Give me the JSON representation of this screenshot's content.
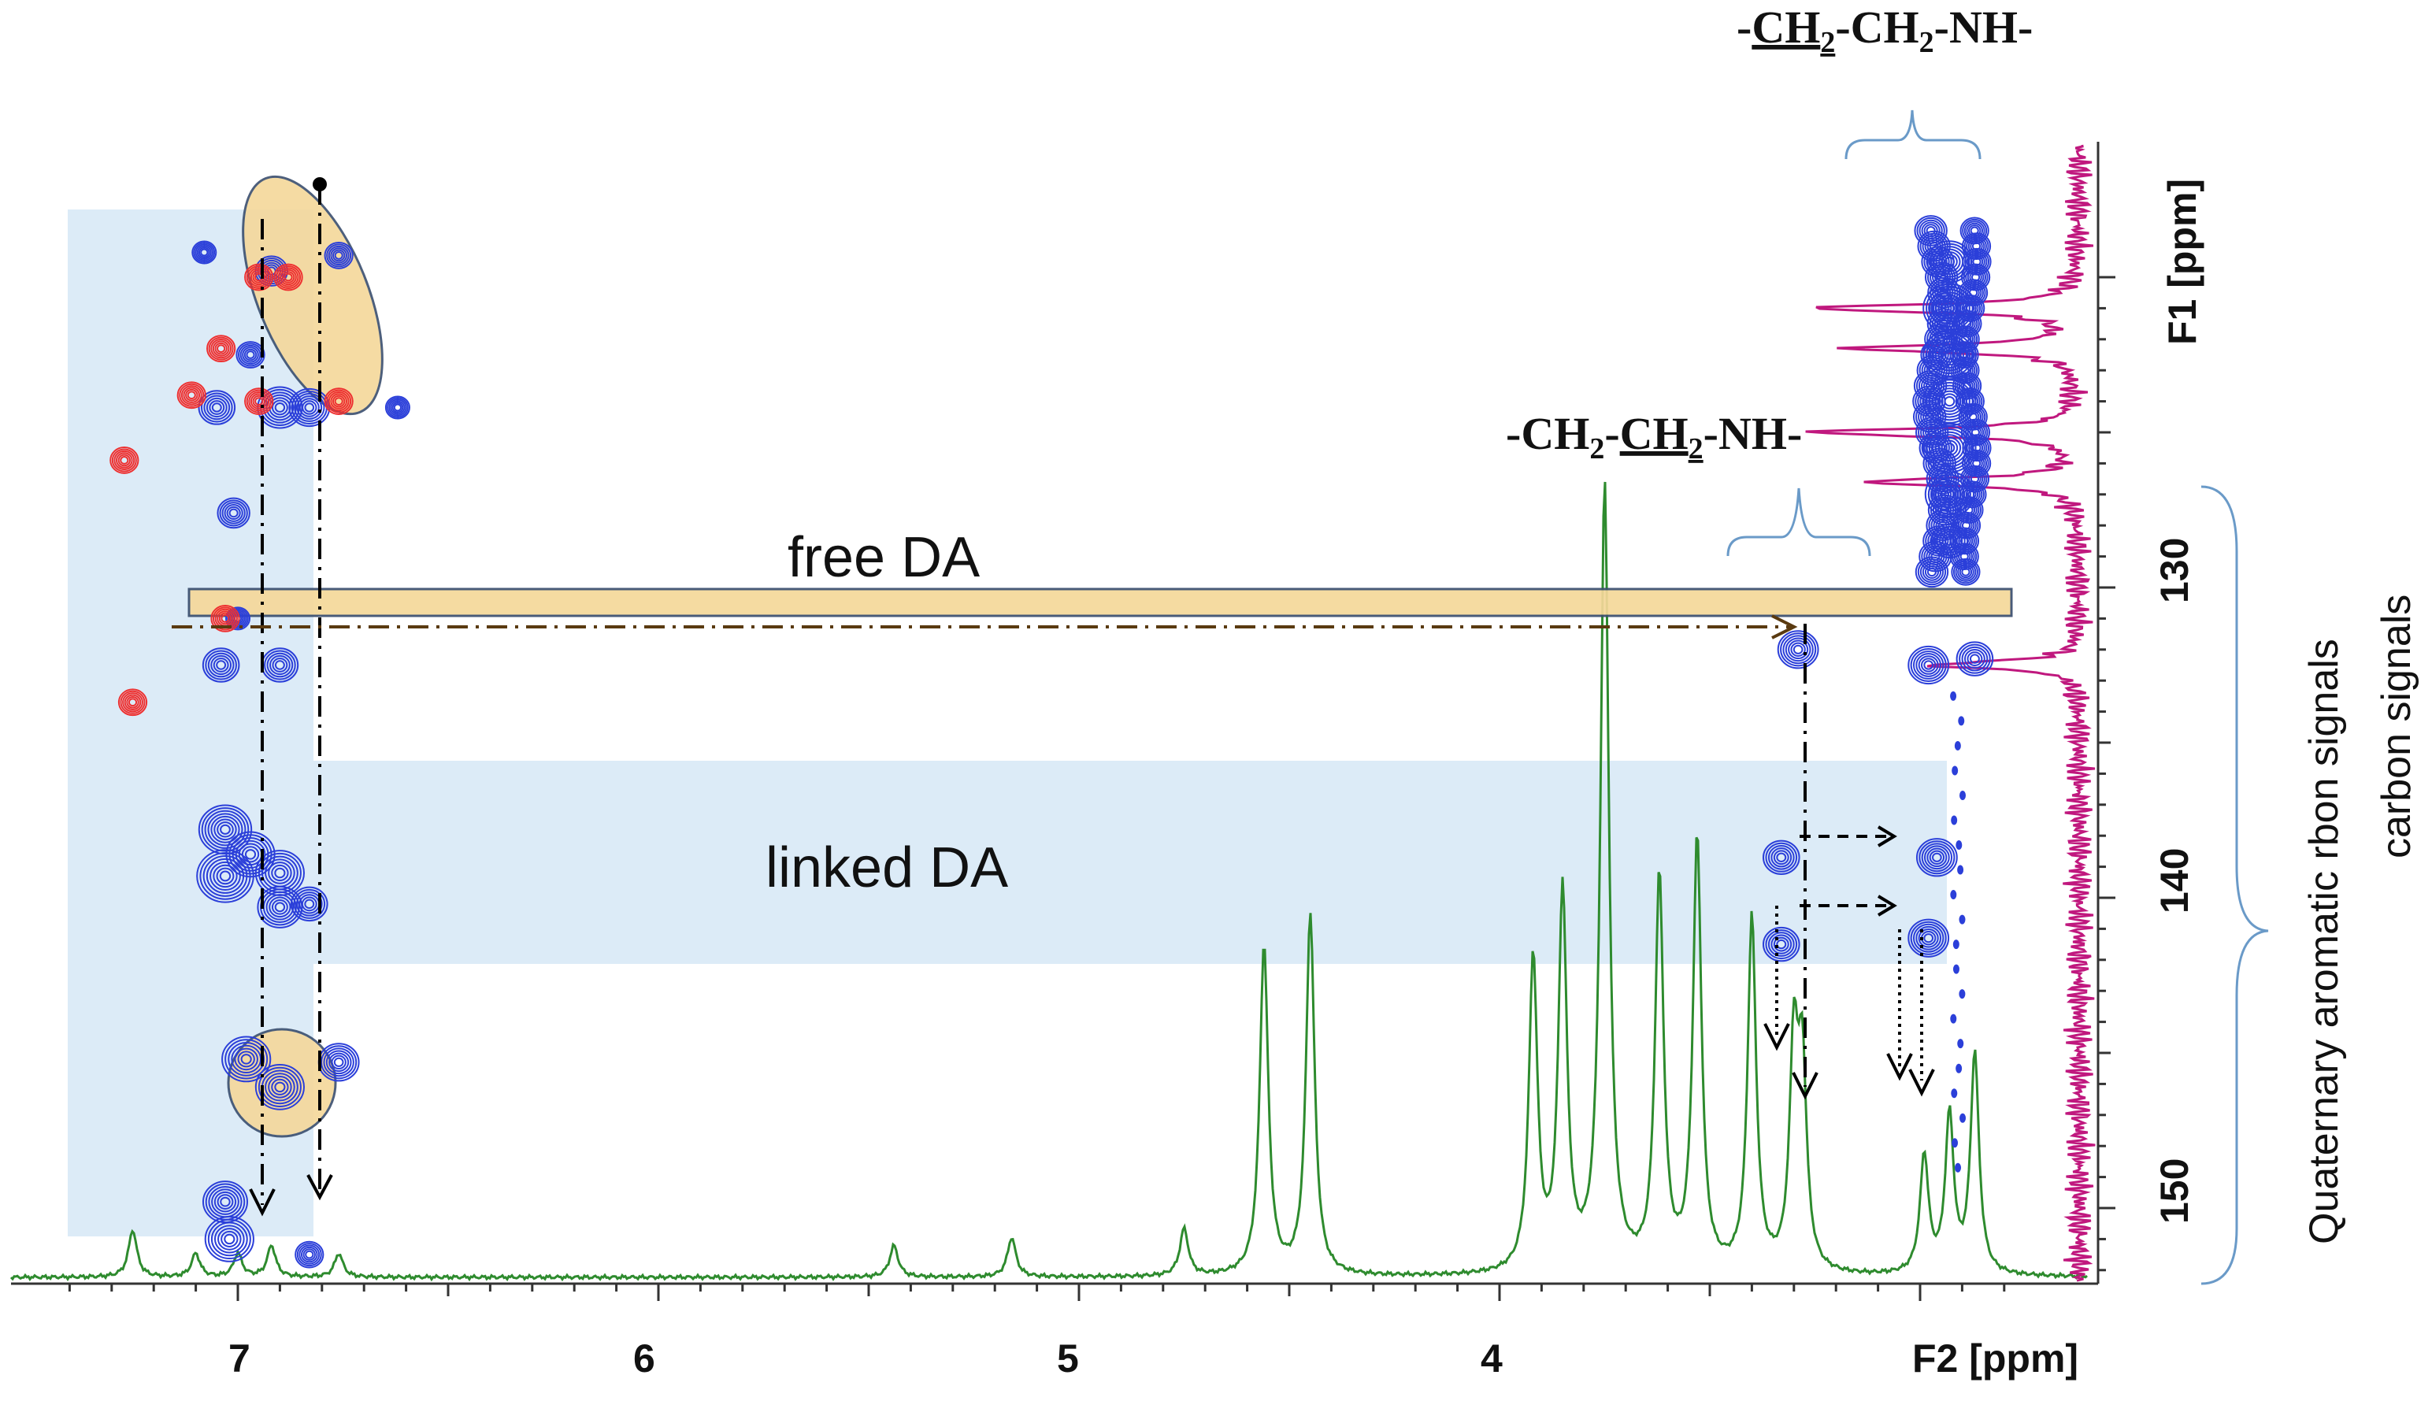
{
  "chart_data": {
    "type": "2D NMR spectrum (HMBC contour plot) with 1H projection (F2) and 13C projection (F1)",
    "x_axis": {
      "label": "F2 [ppm]",
      "reversed": true,
      "range": [
        2.75,
        7.5
      ],
      "ticks": [
        "7",
        "6",
        "5",
        "4"
      ],
      "tick_values": [
        7,
        6,
        5,
        4
      ]
    },
    "y_axis": {
      "label": "F1 [ppm]",
      "reversed": true,
      "range": [
        117.5,
        154.5
      ],
      "ticks": [
        "130",
        "140",
        "150"
      ],
      "tick_values": [
        130,
        140,
        150
      ]
    },
    "regions": [
      {
        "label": "free DA",
        "f1_range": [
          130.8,
          133.7
        ],
        "f2_range": [
          2.85,
          7.1
        ]
      },
      {
        "label": "linked DA",
        "f1_range": [
          136.2,
          143.0
        ],
        "f2_range": [
          3.0,
          7.4
        ]
      }
    ],
    "annotations": {
      "ch2_alpha": {
        "pre": "-",
        "under": "CH",
        "sub": "2",
        "post": "-CH",
        "sub2": "2",
        "tail": "-NH-"
      },
      "ch2_beta": {
        "pre": "-CH",
        "sub": "2",
        "mid": "-",
        "under": "CH",
        "sub2": "2",
        "tail": "-NH-"
      },
      "side_label_1": "Quaternary aromatic rbon signals",
      "side_label_2": "carbon signals"
    },
    "proton_spectrum": {
      "peaks_ppm": [
        7.25,
        7.1,
        7.0,
        6.92,
        6.76,
        5.44,
        5.16,
        4.75,
        4.56,
        4.45,
        3.92,
        3.85,
        3.75,
        3.62,
        3.53,
        3.4,
        3.3,
        3.28,
        2.99,
        2.93,
        2.87
      ],
      "relative_heights": [
        0.06,
        0.03,
        0.03,
        0.04,
        0.03,
        0.04,
        0.05,
        0.06,
        0.42,
        0.46,
        0.4,
        0.48,
        1.0,
        0.5,
        0.55,
        0.45,
        0.28,
        0.25,
        0.15,
        0.2,
        0.28
      ],
      "color": "#2e8b2e"
    },
    "carbon_spectrum": {
      "peaks_ppm": [
        121.0,
        122.3,
        125.0,
        126.6,
        132.5
      ],
      "relative_heights": [
        1.0,
        0.85,
        1.0,
        0.8,
        0.55
      ],
      "color": "#c0187e"
    },
    "cross_peaks": [
      {
        "f2": 7.03,
        "f1": 137.8,
        "size": 1.2
      },
      {
        "f2": 7.03,
        "f1": 139.3,
        "size": 1.3
      },
      {
        "f2": 6.97,
        "f1": 138.6,
        "size": 1.1
      },
      {
        "f2": 6.9,
        "f1": 139.2,
        "size": 1.1
      },
      {
        "f2": 6.9,
        "f1": 140.3,
        "size": 1.0
      },
      {
        "f2": 6.83,
        "f1": 140.2,
        "size": 0.8
      },
      {
        "f2": 6.98,
        "f1": 145.2,
        "size": 1.1
      },
      {
        "f2": 6.9,
        "f1": 146.1,
        "size": 1.1
      },
      {
        "f2": 6.76,
        "f1": 145.3,
        "size": 0.9
      },
      {
        "f2": 7.03,
        "f1": 149.8,
        "size": 1.0
      },
      {
        "f2": 7.02,
        "f1": 151.0,
        "size": 1.1
      },
      {
        "f2": 6.83,
        "f1": 151.5,
        "size": 0.6
      },
      {
        "f2": 7.04,
        "f1": 132.5,
        "size": 0.8
      },
      {
        "f2": 6.9,
        "f1": 132.5,
        "size": 0.8
      },
      {
        "f2": 7.0,
        "f1": 131.0,
        "size": 0.5
      },
      {
        "f2": 6.92,
        "f1": 119.8,
        "size": 0.7
      },
      {
        "f2": 6.76,
        "f1": 119.3,
        "size": 0.6
      },
      {
        "f2": 6.9,
        "f1": 124.2,
        "size": 1.0
      },
      {
        "f2": 6.83,
        "f1": 124.2,
        "size": 0.9
      },
      {
        "f2": 7.05,
        "f1": 124.2,
        "size": 0.8
      },
      {
        "f2": 6.62,
        "f1": 124.2,
        "size": 0.5
      },
      {
        "f2": 7.08,
        "f1": 119.2,
        "size": 0.5
      },
      {
        "f2": 6.97,
        "f1": 122.5,
        "size": 0.6
      },
      {
        "f2": 7.01,
        "f1": 127.6,
        "size": 0.7
      },
      {
        "f2": 3.29,
        "f1": 132.0,
        "size": 0.9
      },
      {
        "f2": 3.33,
        "f1": 138.7,
        "size": 0.8
      },
      {
        "f2": 3.33,
        "f1": 141.5,
        "size": 0.8
      },
      {
        "f2": 2.98,
        "f1": 132.5,
        "size": 0.9
      },
      {
        "f2": 2.87,
        "f1": 132.3,
        "size": 0.8
      },
      {
        "f2": 2.96,
        "f1": 138.7,
        "size": 0.9
      },
      {
        "f2": 2.98,
        "f1": 141.3,
        "size": 0.9
      },
      {
        "f2": 2.93,
        "f1": 119.5,
        "size": 1.0
      },
      {
        "f2": 2.93,
        "f1": 121.0,
        "size": 1.2
      },
      {
        "f2": 2.93,
        "f1": 122.5,
        "size": 1.2
      },
      {
        "f2": 2.93,
        "f1": 124.0,
        "size": 1.2
      },
      {
        "f2": 2.93,
        "f1": 125.5,
        "size": 1.2
      },
      {
        "f2": 2.93,
        "f1": 127.0,
        "size": 1.1
      },
      {
        "f2": 2.93,
        "f1": 128.5,
        "size": 0.8
      }
    ],
    "negative_peaks": [
      {
        "f2": 6.95,
        "f1": 120.0
      },
      {
        "f2": 6.88,
        "f1": 120.0
      },
      {
        "f2": 7.04,
        "f1": 122.3
      },
      {
        "f2": 7.11,
        "f1": 123.8
      },
      {
        "f2": 6.95,
        "f1": 124.0
      },
      {
        "f2": 6.76,
        "f1": 124.0
      },
      {
        "f2": 7.27,
        "f1": 125.9
      },
      {
        "f2": 7.03,
        "f1": 131.0
      },
      {
        "f2": 7.25,
        "f1": 133.7
      }
    ],
    "grid": false
  }
}
